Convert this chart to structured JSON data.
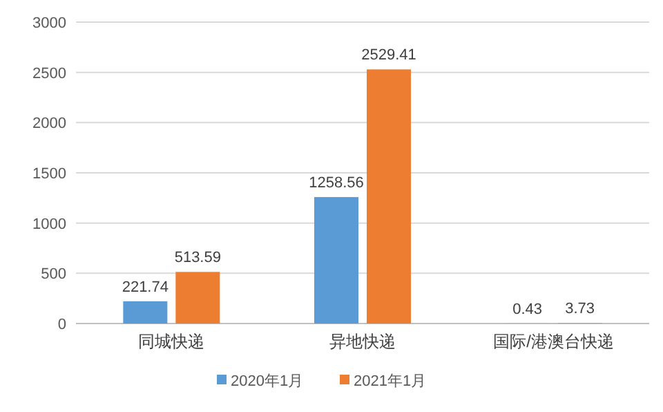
{
  "chart_data": {
    "type": "bar",
    "categories": [
      "同城快递",
      "异地快递",
      "国际/港澳台快递"
    ],
    "series": [
      {
        "name": "2020年1月",
        "color": "#5b9bd5",
        "values": [
          221.74,
          1258.56,
          0.43
        ]
      },
      {
        "name": "2021年1月",
        "color": "#ed7d31",
        "values": [
          513.59,
          2529.41,
          3.73
        ]
      }
    ],
    "ylim": [
      0,
      3000
    ],
    "yticks": [
      0,
      500,
      1000,
      1500,
      2000,
      2500,
      3000
    ],
    "grid": "y",
    "legend": "bottom",
    "data_labels": true
  }
}
